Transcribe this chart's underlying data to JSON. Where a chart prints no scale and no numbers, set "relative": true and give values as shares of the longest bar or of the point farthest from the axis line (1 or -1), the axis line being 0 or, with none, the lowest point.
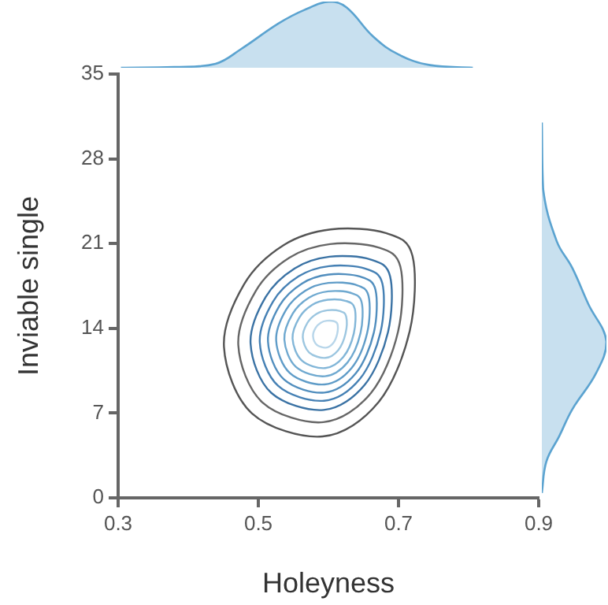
{
  "chart_data": [
    {
      "type": "area",
      "relative": true,
      "tick_labels": false,
      "xlim": [
        0.3,
        0.9
      ],
      "color": "#5ba3d0",
      "x": [
        0.304,
        0.38,
        0.439,
        0.475,
        0.529,
        0.565,
        0.603,
        0.626,
        0.664,
        0.7,
        0.745,
        0.806
      ],
      "values": [
        0,
        0.01,
        0.06,
        0.28,
        0.67,
        0.87,
        1.0,
        0.91,
        0.47,
        0.2,
        0.04,
        0
      ]
    },
    {
      "type": "line",
      "xlabel": "Holeyness",
      "ylabel": "Inviable single",
      "xlim": [
        0.3,
        0.9
      ],
      "ylim": [
        0,
        35
      ],
      "xticks": [
        0.3,
        0.5,
        0.7,
        0.9
      ],
      "yticks": [
        0,
        7,
        14,
        21,
        28,
        35
      ],
      "grid": false
    },
    {
      "type": "area",
      "relative": true,
      "tick_labels": false,
      "orientation": "horizontal",
      "ylim": [
        0,
        35
      ],
      "color": "#5ba3d0",
      "x": [
        31.0,
        25.5,
        21.2,
        19.0,
        16.0,
        12.9,
        10.3,
        7.3,
        5.1,
        3.0,
        0.4
      ],
      "values": [
        0,
        0.02,
        0.23,
        0.47,
        0.72,
        1.0,
        0.84,
        0.47,
        0.27,
        0.07,
        0
      ]
    }
  ]
}
